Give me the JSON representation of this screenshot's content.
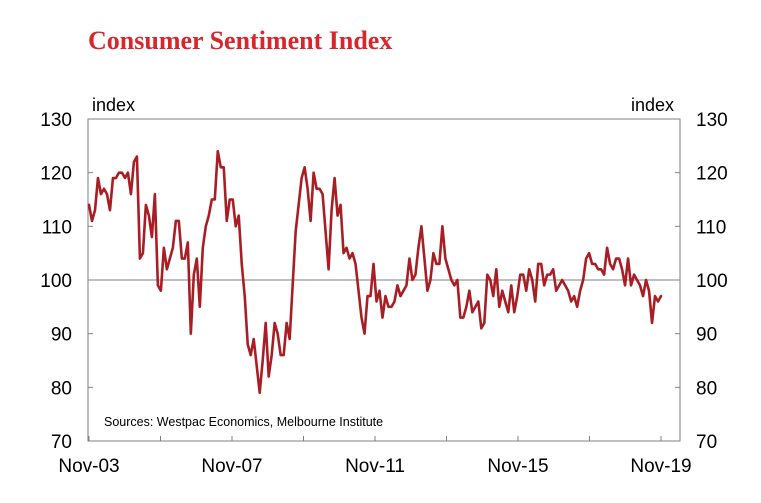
{
  "chart_data": {
    "type": "line",
    "title": "Consumer Sentiment Index",
    "ylabel_left": "index",
    "ylabel_right": "index",
    "source": "Sources: Westpac Economics, Melbourne Institute",
    "ylim": [
      70,
      130
    ],
    "yticks": [
      70,
      80,
      90,
      100,
      110,
      120,
      130
    ],
    "xlim": [
      0,
      192
    ],
    "xticks": [
      {
        "pos": 0,
        "label": "Nov-03"
      },
      {
        "pos": 48,
        "label": "Nov-07"
      },
      {
        "pos": 96,
        "label": "Nov-11"
      },
      {
        "pos": 144,
        "label": "Nov-15"
      },
      {
        "pos": 192,
        "label": "Nov-19"
      }
    ],
    "minor_xticks": [
      24,
      72,
      120,
      168
    ],
    "reference_line": 100,
    "colors": {
      "line": "#a81e24",
      "title": "#d9262c",
      "ref": "#808080",
      "axis": "#808080"
    },
    "series": [
      {
        "name": "Consumer Sentiment Index",
        "values": [
          114,
          111,
          113,
          119,
          116,
          117,
          116,
          113,
          119,
          119,
          120,
          120,
          119,
          120,
          116,
          122,
          123,
          104,
          105,
          114,
          112,
          108,
          116,
          99,
          98,
          106,
          102,
          104,
          106,
          111,
          111,
          104,
          104,
          107,
          90,
          101,
          104,
          95,
          106,
          110,
          112,
          115,
          115,
          124,
          121,
          121,
          111,
          115,
          115,
          110,
          112,
          103,
          97,
          88,
          86,
          89,
          84,
          79,
          85,
          92,
          82,
          86,
          92,
          90,
          86,
          86,
          92,
          89,
          99,
          109,
          114,
          119,
          121,
          117,
          111,
          120,
          117,
          117,
          116,
          109,
          102,
          113,
          119,
          112,
          114,
          105,
          106,
          104,
          105,
          103,
          98,
          93,
          90,
          97,
          97,
          103,
          96,
          98,
          93,
          97,
          95,
          95,
          96,
          99,
          97,
          98,
          99,
          104,
          100,
          101,
          106,
          110,
          104,
          98,
          100,
          105,
          103,
          103,
          110,
          104,
          102,
          100,
          99,
          100,
          93,
          93,
          95,
          98,
          94,
          95,
          96,
          91,
          92,
          101,
          100,
          97,
          102,
          95,
          98,
          96,
          94,
          99,
          94,
          97,
          101,
          101,
          98,
          102,
          100,
          96,
          103,
          103,
          99,
          101,
          101,
          102,
          98,
          99,
          100,
          99,
          98,
          96,
          97,
          95,
          98,
          100,
          104,
          105,
          103,
          103,
          102,
          102,
          101,
          106,
          103,
          102,
          104,
          104,
          102,
          99,
          104,
          99,
          101,
          100,
          99,
          97,
          100,
          98,
          92,
          97,
          96,
          97
        ]
      }
    ]
  }
}
